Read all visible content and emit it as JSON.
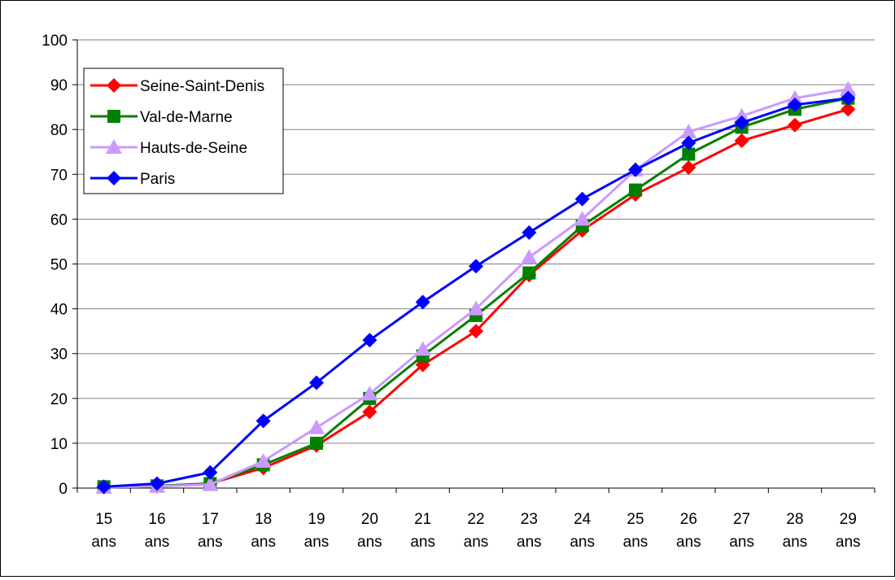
{
  "chart_data": {
    "type": "line",
    "categories": [
      [
        "15",
        "ans"
      ],
      [
        "16",
        "ans"
      ],
      [
        "17",
        "ans"
      ],
      [
        "18",
        "ans"
      ],
      [
        "19",
        "ans"
      ],
      [
        "20",
        "ans"
      ],
      [
        "21",
        "ans"
      ],
      [
        "22",
        "ans"
      ],
      [
        "23",
        "ans"
      ],
      [
        "24",
        "ans"
      ],
      [
        "25",
        "ans"
      ],
      [
        "26",
        "ans"
      ],
      [
        "27",
        "ans"
      ],
      [
        "28",
        "ans"
      ],
      [
        "29",
        "ans"
      ]
    ],
    "ylim": [
      0,
      100
    ],
    "yticks": [
      "0",
      "10",
      "20",
      "30",
      "40",
      "50",
      "60",
      "70",
      "80",
      "90",
      "100"
    ],
    "grid": true,
    "legend_position": "top-left",
    "series": [
      {
        "name": "Seine-Saint-Denis",
        "color": "#ff0000",
        "marker": "diamond",
        "values": [
          0.2,
          0.4,
          1.0,
          4.5,
          9.5,
          17,
          27.5,
          35,
          47.5,
          57.5,
          65.5,
          71.5,
          77.5,
          81,
          84.5
        ]
      },
      {
        "name": "Val-de-Marne",
        "color": "#008000",
        "marker": "square",
        "values": [
          0.3,
          0.5,
          1.0,
          5.2,
          10,
          20,
          29.5,
          38.5,
          48,
          58.5,
          66.5,
          74.5,
          80.5,
          84.5,
          87
        ]
      },
      {
        "name": "Hauts-de-Seine",
        "color": "#cc99ff",
        "marker": "triangle",
        "values": [
          0.2,
          0.4,
          0.8,
          6,
          13.5,
          21,
          31,
          40,
          51.5,
          60,
          71,
          79.5,
          83,
          87,
          89
        ]
      },
      {
        "name": "Paris",
        "color": "#0000ff",
        "marker": "diamond",
        "values": [
          0.3,
          1.0,
          3.5,
          15,
          23.5,
          33,
          41.5,
          49.5,
          57,
          64.5,
          71,
          77,
          81.5,
          85.5,
          87
        ]
      }
    ]
  }
}
